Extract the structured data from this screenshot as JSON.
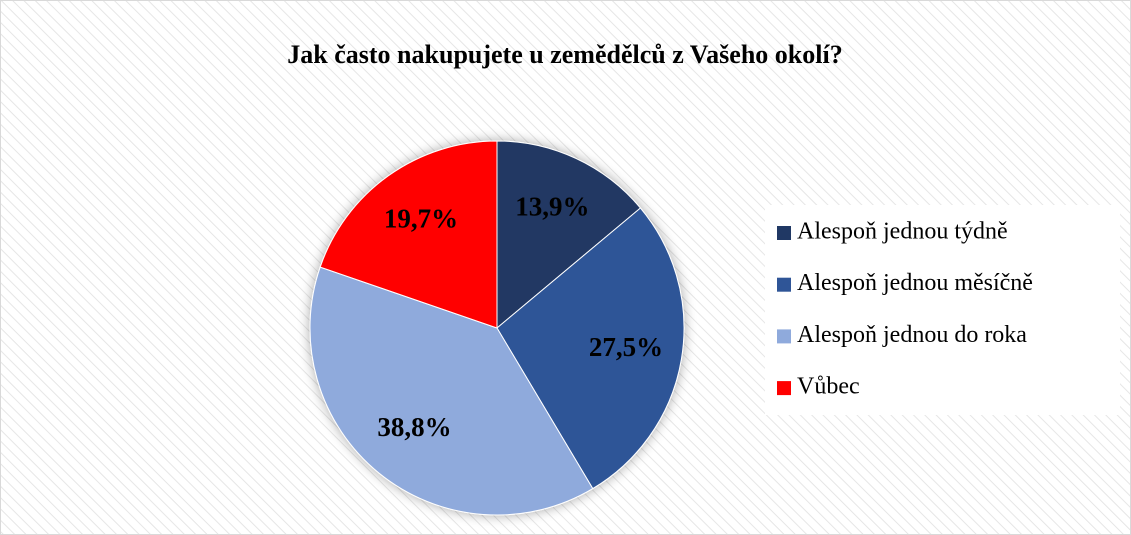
{
  "chart_data": {
    "type": "pie",
    "title": "Jak často nakupujete u zemědělců z Vašeho okolí?",
    "categories": [
      "Alespoň jednou týdně",
      "Alespoň jednou měsíčně",
      "Alespoň jednou do roka",
      "Vůbec"
    ],
    "values": [
      13.9,
      27.5,
      38.8,
      19.7
    ],
    "value_labels": [
      "13,9%",
      "27,5%",
      "38,8%",
      "19,7%"
    ],
    "colors": [
      "#203864",
      "#2f5597",
      "#8faadc",
      "#ff0000"
    ],
    "legend": "right"
  }
}
